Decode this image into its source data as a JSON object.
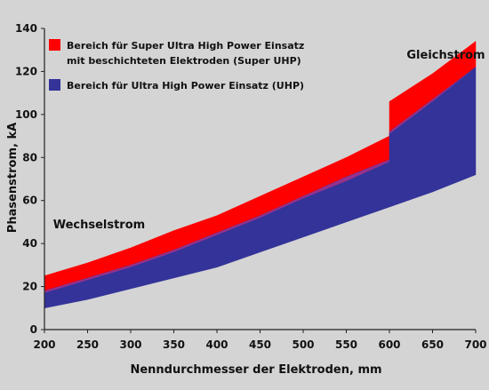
{
  "chart_data": {
    "type": "area",
    "xlabel": "Nenndurchmesser der Elektroden, mm",
    "ylabel": "Phasenstrom, kA",
    "xlim": [
      200,
      700
    ],
    "ylim": [
      0,
      140
    ],
    "xticks": [
      200,
      250,
      300,
      350,
      400,
      450,
      500,
      550,
      600,
      650,
      700
    ],
    "yticks": [
      0,
      20,
      40,
      60,
      80,
      100,
      120,
      140
    ],
    "grid": false,
    "legend_position": "top-left",
    "series": [
      {
        "name": "Bereich für Super Ultra High Power Einsatz mit beschichteten Elektroden (Super UHP)",
        "color": "#ff0000",
        "upper": [
          [
            200,
            25
          ],
          [
            250,
            31
          ],
          [
            300,
            38
          ],
          [
            350,
            46
          ],
          [
            400,
            53
          ],
          [
            450,
            62
          ],
          [
            500,
            71
          ],
          [
            550,
            80
          ],
          [
            600,
            90
          ],
          [
            600,
            106
          ],
          [
            650,
            119
          ],
          [
            700,
            134
          ]
        ],
        "lower": [
          [
            200,
            17
          ],
          [
            250,
            23
          ],
          [
            300,
            29
          ],
          [
            350,
            36
          ],
          [
            400,
            44
          ],
          [
            450,
            52
          ],
          [
            500,
            61
          ],
          [
            550,
            69
          ],
          [
            600,
            78
          ],
          [
            600,
            91
          ],
          [
            650,
            106
          ],
          [
            700,
            122
          ]
        ]
      },
      {
        "name": "Bereich für Ultra High Power Einsatz (UHP)",
        "color": "#333399",
        "upper": [
          [
            200,
            18
          ],
          [
            250,
            24
          ],
          [
            300,
            30
          ],
          [
            350,
            37
          ],
          [
            400,
            45
          ],
          [
            450,
            53
          ],
          [
            500,
            62
          ],
          [
            550,
            71
          ],
          [
            600,
            79
          ],
          [
            600,
            92
          ],
          [
            650,
            107
          ],
          [
            700,
            122
          ]
        ],
        "lower": [
          [
            200,
            10
          ],
          [
            250,
            14
          ],
          [
            300,
            19
          ],
          [
            350,
            24
          ],
          [
            400,
            29
          ],
          [
            450,
            36
          ],
          [
            500,
            43
          ],
          [
            550,
            50
          ],
          [
            600,
            57
          ],
          [
            650,
            64
          ],
          [
            700,
            72
          ]
        ]
      }
    ],
    "annotations": [
      {
        "text": "Gleichstrom",
        "x": 620,
        "y": 126
      },
      {
        "text": "Wechselstrom",
        "x": 210,
        "y": 47
      }
    ]
  }
}
